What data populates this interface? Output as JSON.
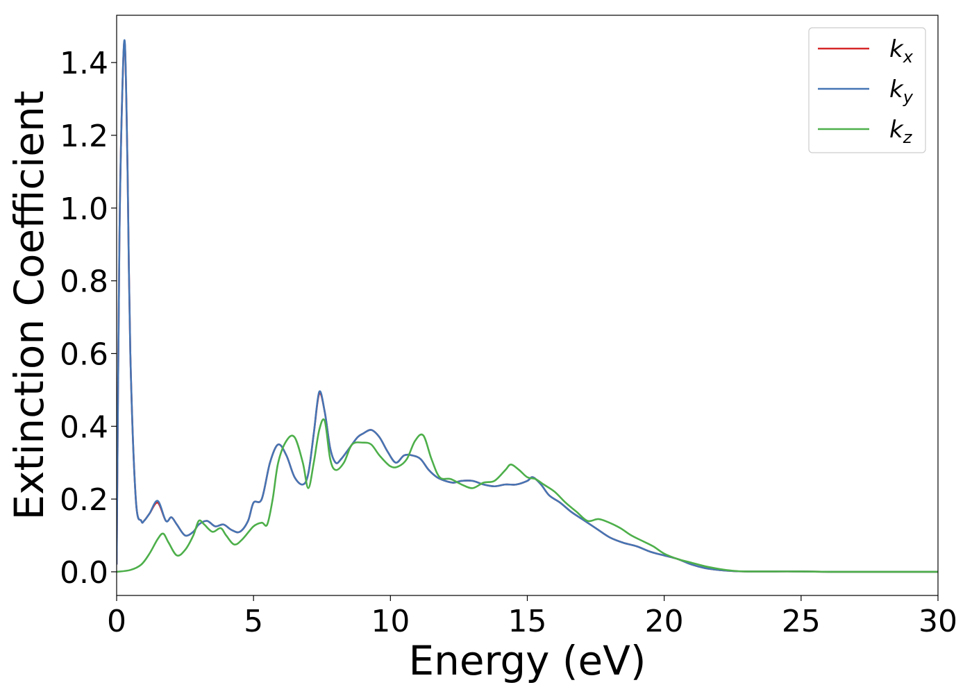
{
  "chart_data": {
    "type": "line",
    "title": "",
    "xlabel": "Energy (eV)",
    "ylabel": "Extinction Coefficient",
    "xlim": [
      0,
      30
    ],
    "ylim": [
      -0.065,
      1.53
    ],
    "grid": false,
    "legend_position": "top-right",
    "x_ticks": [
      0,
      5,
      10,
      15,
      20,
      25,
      30
    ],
    "x_tick_labels": [
      "0",
      "5",
      "10",
      "15",
      "20",
      "25",
      "30"
    ],
    "y_ticks": [
      0.0,
      0.2,
      0.4,
      0.6,
      0.8,
      1.0,
      1.2,
      1.4
    ],
    "y_tick_labels": [
      "0.0",
      "0.2",
      "0.4",
      "0.6",
      "0.8",
      "1.0",
      "1.2",
      "1.4"
    ],
    "series": [
      {
        "name": "k_x",
        "legend_main": "k",
        "legend_sub": "x",
        "color": "#d62728",
        "x": [
          0,
          0.1,
          0.2,
          0.3,
          0.4,
          0.5,
          0.7,
          0.9,
          1.0,
          1.2,
          1.5,
          1.8,
          2.0,
          2.2,
          2.5,
          2.8,
          3.0,
          3.3,
          3.6,
          3.9,
          4.2,
          4.5,
          4.8,
          5.0,
          5.3,
          5.6,
          5.9,
          6.2,
          6.5,
          6.8,
          7.0,
          7.2,
          7.4,
          7.6,
          7.8,
          8.0,
          8.2,
          8.5,
          8.8,
          9.0,
          9.3,
          9.6,
          9.9,
          10.2,
          10.5,
          10.8,
          11.1,
          11.4,
          11.7,
          12.0,
          12.3,
          12.6,
          13.0,
          13.4,
          13.8,
          14.2,
          14.6,
          15.0,
          15.2,
          15.5,
          15.8,
          16.2,
          16.6,
          17.0,
          17.5,
          18.0,
          18.5,
          19.0,
          19.5,
          20.0,
          20.5,
          21.0,
          21.5,
          22.0,
          22.5,
          23.0,
          24.0,
          25.0,
          26.0,
          27.0,
          28.0,
          29.0,
          30.0
        ],
        "y": [
          0.02,
          0.9,
          1.3,
          1.45,
          1.1,
          0.6,
          0.2,
          0.14,
          0.14,
          0.16,
          0.19,
          0.14,
          0.15,
          0.13,
          0.1,
          0.11,
          0.13,
          0.14,
          0.125,
          0.13,
          0.115,
          0.11,
          0.14,
          0.19,
          0.2,
          0.3,
          0.35,
          0.32,
          0.26,
          0.24,
          0.27,
          0.38,
          0.49,
          0.44,
          0.34,
          0.3,
          0.31,
          0.34,
          0.37,
          0.38,
          0.39,
          0.37,
          0.33,
          0.3,
          0.32,
          0.32,
          0.31,
          0.28,
          0.26,
          0.25,
          0.245,
          0.25,
          0.25,
          0.24,
          0.235,
          0.24,
          0.24,
          0.25,
          0.26,
          0.24,
          0.21,
          0.19,
          0.165,
          0.145,
          0.12,
          0.095,
          0.08,
          0.07,
          0.055,
          0.045,
          0.035,
          0.02,
          0.01,
          0.005,
          0.002,
          0.001,
          0.001,
          0.001,
          0.0,
          0.0,
          0.0,
          0.0,
          0.0
        ]
      },
      {
        "name": "k_y",
        "legend_main": "k",
        "legend_sub": "y",
        "color": "#4575b4",
        "x": [
          0,
          0.1,
          0.2,
          0.3,
          0.4,
          0.5,
          0.7,
          0.9,
          1.0,
          1.2,
          1.5,
          1.8,
          2.0,
          2.2,
          2.5,
          2.8,
          3.0,
          3.3,
          3.6,
          3.9,
          4.2,
          4.5,
          4.8,
          5.0,
          5.3,
          5.6,
          5.9,
          6.2,
          6.5,
          6.8,
          7.0,
          7.2,
          7.4,
          7.6,
          7.8,
          8.0,
          8.2,
          8.5,
          8.8,
          9.0,
          9.3,
          9.6,
          9.9,
          10.2,
          10.5,
          10.8,
          11.1,
          11.4,
          11.7,
          12.0,
          12.3,
          12.6,
          13.0,
          13.4,
          13.8,
          14.2,
          14.6,
          15.0,
          15.2,
          15.5,
          15.8,
          16.2,
          16.6,
          17.0,
          17.5,
          18.0,
          18.5,
          19.0,
          19.5,
          20.0,
          20.5,
          21.0,
          21.5,
          22.0,
          22.5,
          23.0,
          24.0,
          25.0,
          26.0,
          27.0,
          28.0,
          29.0,
          30.0
        ],
        "y": [
          0.02,
          0.9,
          1.3,
          1.455,
          1.1,
          0.6,
          0.2,
          0.14,
          0.14,
          0.16,
          0.195,
          0.14,
          0.15,
          0.13,
          0.1,
          0.11,
          0.13,
          0.14,
          0.125,
          0.13,
          0.115,
          0.11,
          0.14,
          0.19,
          0.2,
          0.3,
          0.35,
          0.32,
          0.26,
          0.24,
          0.27,
          0.38,
          0.495,
          0.44,
          0.34,
          0.3,
          0.31,
          0.34,
          0.37,
          0.38,
          0.39,
          0.37,
          0.33,
          0.3,
          0.32,
          0.32,
          0.31,
          0.28,
          0.26,
          0.25,
          0.245,
          0.25,
          0.25,
          0.24,
          0.235,
          0.24,
          0.24,
          0.25,
          0.26,
          0.24,
          0.21,
          0.19,
          0.165,
          0.145,
          0.12,
          0.095,
          0.08,
          0.07,
          0.055,
          0.045,
          0.035,
          0.02,
          0.01,
          0.005,
          0.002,
          0.001,
          0.001,
          0.001,
          0.0,
          0.0,
          0.0,
          0.0,
          0.0
        ]
      },
      {
        "name": "k_z",
        "legend_main": "k",
        "legend_sub": "z",
        "color": "#4daf4a",
        "x": [
          0,
          0.5,
          0.9,
          1.2,
          1.5,
          1.7,
          1.9,
          2.2,
          2.5,
          2.8,
          3.0,
          3.2,
          3.5,
          3.8,
          4.0,
          4.3,
          4.6,
          5.0,
          5.3,
          5.5,
          5.7,
          5.9,
          6.2,
          6.5,
          6.8,
          7.0,
          7.2,
          7.4,
          7.6,
          7.8,
          8.0,
          8.3,
          8.6,
          9.0,
          9.3,
          9.6,
          10.0,
          10.3,
          10.6,
          10.9,
          11.2,
          11.5,
          11.8,
          12.2,
          12.6,
          13.0,
          13.4,
          13.8,
          14.2,
          14.4,
          14.7,
          15.0,
          15.3,
          15.6,
          16.0,
          16.4,
          16.8,
          17.2,
          17.6,
          18.0,
          18.4,
          18.8,
          19.2,
          19.6,
          20.0,
          20.5,
          21.0,
          21.5,
          22.0,
          22.5,
          23.0,
          24.0,
          25.0,
          26.0,
          27.0,
          28.0,
          29.0,
          30.0
        ],
        "y": [
          0.0,
          0.005,
          0.02,
          0.05,
          0.09,
          0.105,
          0.08,
          0.045,
          0.06,
          0.1,
          0.14,
          0.13,
          0.11,
          0.12,
          0.1,
          0.075,
          0.09,
          0.125,
          0.135,
          0.13,
          0.2,
          0.3,
          0.36,
          0.37,
          0.3,
          0.23,
          0.3,
          0.39,
          0.415,
          0.31,
          0.28,
          0.3,
          0.35,
          0.355,
          0.35,
          0.32,
          0.29,
          0.29,
          0.31,
          0.36,
          0.375,
          0.31,
          0.26,
          0.255,
          0.24,
          0.23,
          0.245,
          0.25,
          0.28,
          0.295,
          0.28,
          0.26,
          0.255,
          0.24,
          0.22,
          0.19,
          0.165,
          0.14,
          0.145,
          0.135,
          0.12,
          0.1,
          0.085,
          0.07,
          0.05,
          0.035,
          0.025,
          0.015,
          0.008,
          0.003,
          0.001,
          0.001,
          0.001,
          0.0,
          0.0,
          0.0,
          0.0,
          0.0
        ]
      }
    ]
  }
}
